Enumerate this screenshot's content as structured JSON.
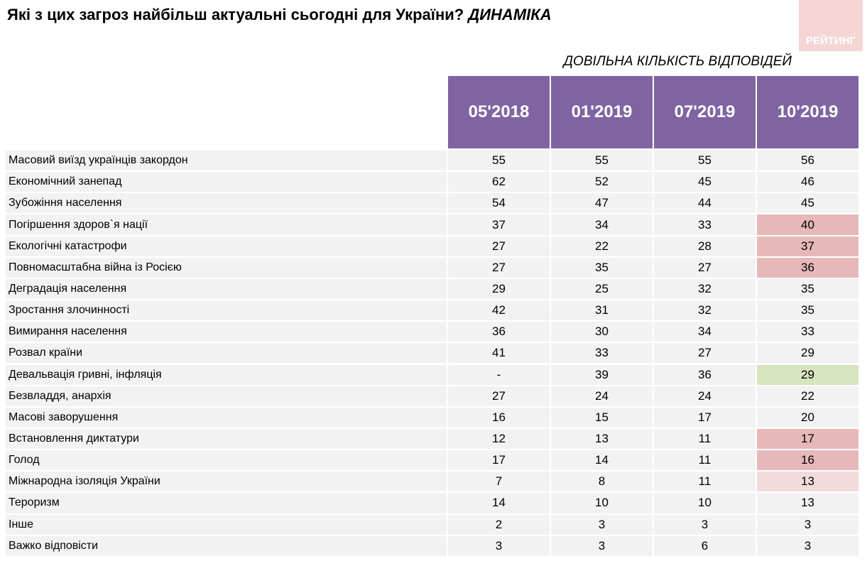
{
  "header": {
    "title": "Які з цих загроз найбільш актуальні сьогодні для України?",
    "title_emphasis": "ДИНАМІКА",
    "logo": "РЕЙТИНГ",
    "subtitle": "ДОВІЛЬНА КІЛЬКІСТЬ ВІДПОВІДЕЙ"
  },
  "table": {
    "columns": [
      "05'2018",
      "01'2019",
      "07'2019",
      "10'2019"
    ],
    "rows": [
      {
        "label": "Масовий виїзд українців закордон",
        "values": [
          55,
          55,
          55,
          56
        ]
      },
      {
        "label": "Економічний занепад",
        "values": [
          62,
          52,
          45,
          46
        ]
      },
      {
        "label": "Зубожіння населення",
        "values": [
          54,
          47,
          44,
          45
        ]
      },
      {
        "label": "Погіршення здоров`я нації",
        "values": [
          37,
          34,
          33,
          40
        ],
        "highlight": "#e6b8b7"
      },
      {
        "label": "Екологічні катастрофи",
        "values": [
          27,
          22,
          28,
          37
        ],
        "highlight": "#e6b8b7"
      },
      {
        "label": "Повномасштабна війна із Росією",
        "values": [
          27,
          35,
          27,
          36
        ],
        "highlight": "#e6b8b7"
      },
      {
        "label": "Деградація населення",
        "values": [
          29,
          25,
          32,
          35
        ]
      },
      {
        "label": "Зростання злочинності",
        "values": [
          42,
          31,
          32,
          35
        ]
      },
      {
        "label": "Вимирання населення",
        "values": [
          36,
          30,
          34,
          33
        ]
      },
      {
        "label": "Розвал країни",
        "values": [
          41,
          33,
          27,
          29
        ]
      },
      {
        "label": "Девальвація гривні, інфляція",
        "values": [
          "-",
          39,
          36,
          29
        ],
        "highlight": "#d7e4bd"
      },
      {
        "label": "Безвладдя, анархія",
        "values": [
          27,
          24,
          24,
          22
        ]
      },
      {
        "label": "Масові заворушення",
        "values": [
          16,
          15,
          17,
          20
        ]
      },
      {
        "label": "Встановлення диктатури",
        "values": [
          12,
          13,
          11,
          17
        ],
        "highlight": "#e6b8b7"
      },
      {
        "label": "Голод",
        "values": [
          17,
          14,
          11,
          16
        ],
        "highlight": "#e6b8b7"
      },
      {
        "label": "Міжнародна ізоляція України",
        "values": [
          7,
          8,
          11,
          13
        ],
        "highlight": "#f2dcdb"
      },
      {
        "label": "Тероризм",
        "values": [
          14,
          10,
          10,
          13
        ]
      },
      {
        "label": "Інше",
        "values": [
          2,
          3,
          3,
          3
        ]
      },
      {
        "label": "Важко відповісти",
        "values": [
          3,
          3,
          6,
          3
        ]
      }
    ]
  }
}
